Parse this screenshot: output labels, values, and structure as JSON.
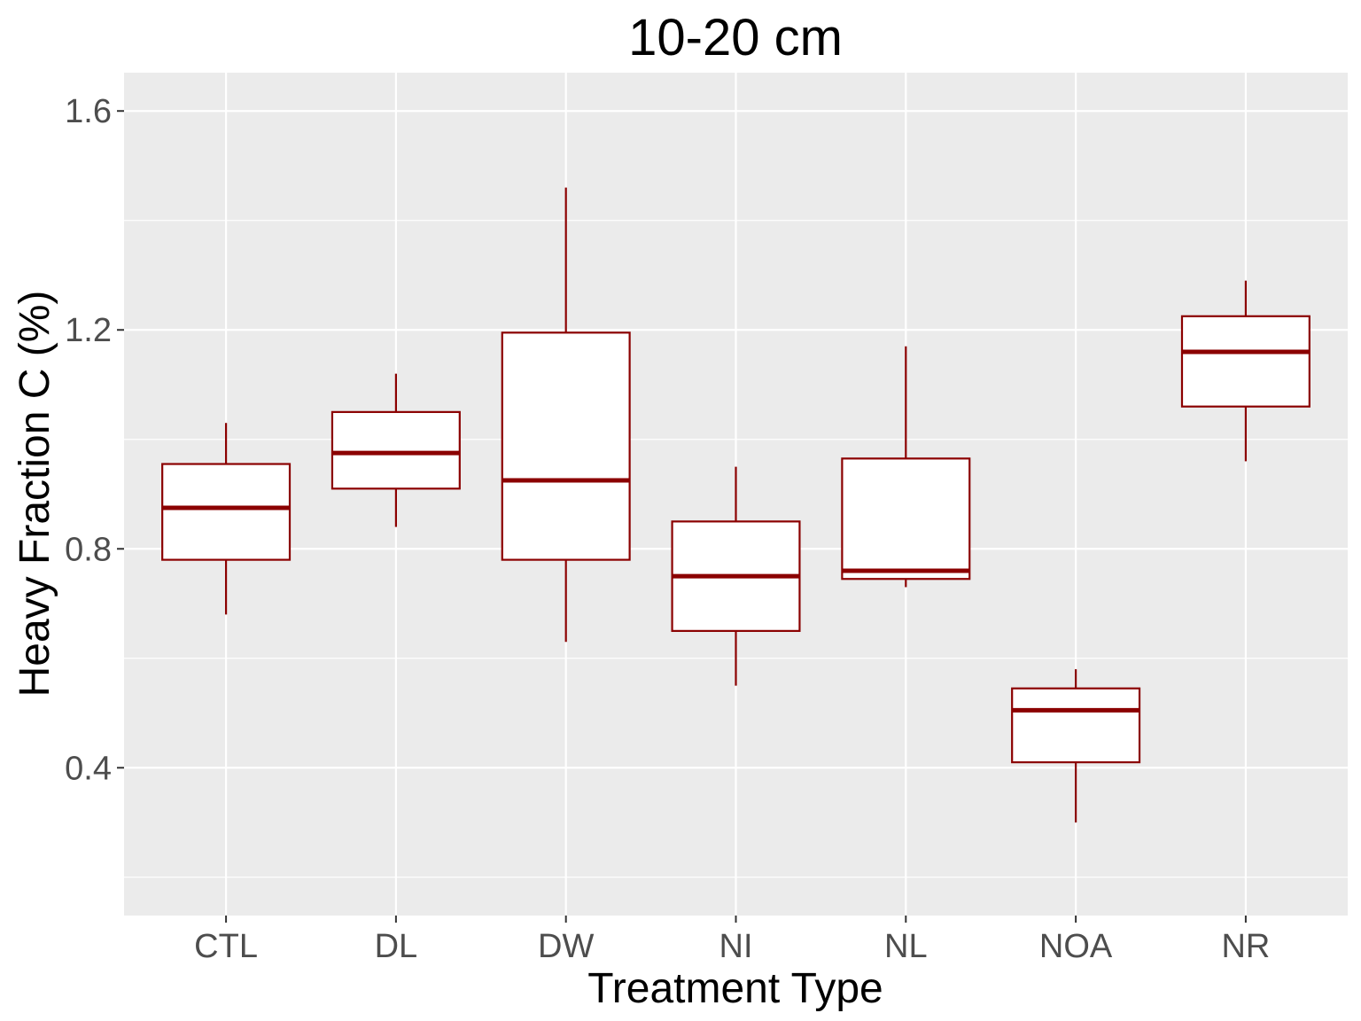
{
  "chart_data": {
    "type": "box",
    "title": "10-20 cm",
    "xlabel": "Treatment Type",
    "ylabel": "Heavy Fraction C (%)",
    "ylim": [
      0.13,
      1.67
    ],
    "yticks": [
      0.4,
      0.8,
      1.2,
      1.6
    ],
    "yticklabels": [
      "0.4",
      "0.8",
      "1.2",
      "1.6"
    ],
    "grid": true,
    "categories": [
      "CTL",
      "DL",
      "DW",
      "NI",
      "NL",
      "NOA",
      "NR"
    ],
    "boxes": [
      {
        "category": "CTL",
        "min": 0.68,
        "q1": 0.78,
        "median": 0.875,
        "q3": 0.955,
        "max": 1.03
      },
      {
        "category": "DL",
        "min": 0.84,
        "q1": 0.91,
        "median": 0.975,
        "q3": 1.05,
        "max": 1.12
      },
      {
        "category": "DW",
        "min": 0.63,
        "q1": 0.78,
        "median": 0.925,
        "q3": 1.195,
        "max": 1.46
      },
      {
        "category": "NI",
        "min": 0.55,
        "q1": 0.65,
        "median": 0.75,
        "q3": 0.85,
        "max": 0.95
      },
      {
        "category": "NL",
        "min": 0.73,
        "q1": 0.745,
        "median": 0.76,
        "q3": 0.965,
        "max": 1.17
      },
      {
        "category": "NOA",
        "min": 0.3,
        "q1": 0.41,
        "median": 0.505,
        "q3": 0.545,
        "max": 0.58
      },
      {
        "category": "NR",
        "min": 0.96,
        "q1": 1.06,
        "median": 1.16,
        "q3": 1.225,
        "max": 1.29
      }
    ],
    "colors": {
      "box_stroke": "#8b0000",
      "box_fill": "#ffffff",
      "panel": "#ebebeb",
      "grid": "#ffffff"
    }
  }
}
